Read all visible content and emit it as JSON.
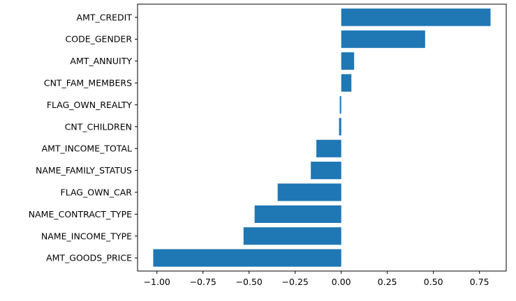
{
  "chart_data": {
    "type": "bar",
    "orientation": "horizontal",
    "categories": [
      "AMT_CREDIT",
      "CODE_GENDER",
      "AMT_ANNUITY",
      "CNT_FAM_MEMBERS",
      "FLAG_OWN_REALTY",
      "CNT_CHILDREN",
      "AMT_INCOME_TOTAL",
      "NAME_FAMILY_STATUS",
      "FLAG_OWN_CAR",
      "NAME_CONTRACT_TYPE",
      "NAME_INCOME_TYPE",
      "AMT_GOODS_PRICE"
    ],
    "values": [
      0.81,
      0.455,
      0.07,
      0.055,
      -0.008,
      -0.012,
      -0.135,
      -0.165,
      -0.345,
      -0.47,
      -0.53,
      -1.02
    ],
    "xlim": [
      -1.105,
      0.895
    ],
    "xticks": [
      -1.0,
      -0.75,
      -0.5,
      -0.25,
      0.0,
      0.25,
      0.5,
      0.75
    ],
    "xtick_labels": [
      "−1.00",
      "−0.75",
      "−0.50",
      "−0.25",
      "0.00",
      "0.25",
      "0.50",
      "0.75"
    ],
    "title": "",
    "xlabel": "",
    "ylabel": "",
    "grid": false,
    "bar_color": "#1f77b4"
  }
}
